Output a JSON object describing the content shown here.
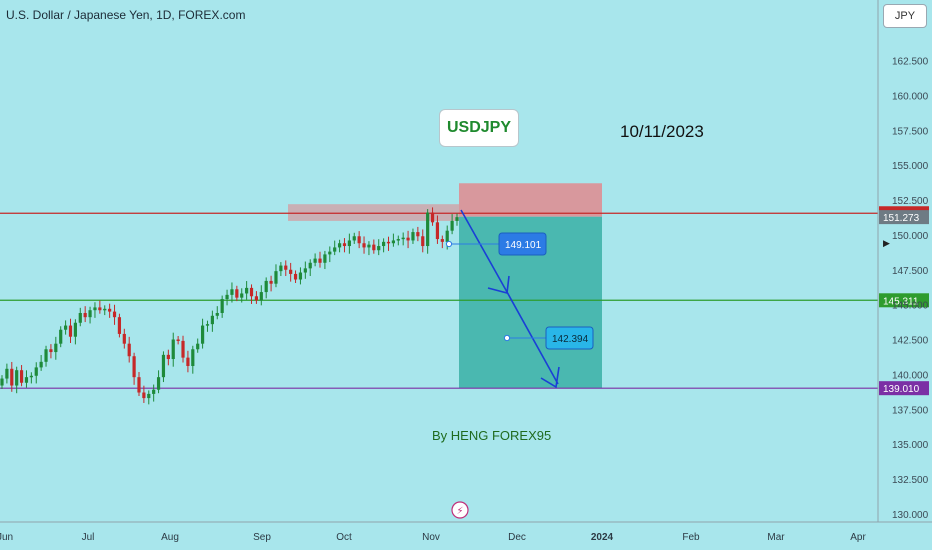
{
  "header": {
    "title": "U.S. Dollar / Japanese Yen, 1D, FOREX.com"
  },
  "currency_button": "JPY",
  "symbol_label": "USDJPY",
  "date_label": "10/11/2023",
  "author_label": "By HENG FOREX95",
  "colors": {
    "background": "#a8e6ec",
    "up": "#1e8a3a",
    "down": "#c62828",
    "target": "#3fb3aa",
    "stop": "#e08a8f",
    "arrow": "#1a3fd6"
  },
  "chart_data": {
    "type": "candlestick",
    "y_axis": {
      "ylim": [
        130,
        164
      ],
      "ticks": [
        "130.000",
        "132.500",
        "135.000",
        "137.500",
        "140.000",
        "142.500",
        "145.000",
        "147.500",
        "150.000",
        "152.500",
        "155.000",
        "157.500",
        "160.000",
        "162.500"
      ]
    },
    "x_axis": {
      "ticks": [
        "Jun",
        "Jul",
        "Aug",
        "Sep",
        "Oct",
        "Nov",
        "Dec",
        "2024",
        "Feb",
        "Mar",
        "Apr"
      ]
    },
    "price_lines": [
      {
        "name": "resistance",
        "value": 151.55,
        "label": "151.550",
        "color": "#c62828"
      },
      {
        "name": "last-price",
        "value": 151.273,
        "label": "151.273",
        "color": "#6e7b84"
      },
      {
        "name": "mid-support",
        "value": 145.311,
        "label": "145.311",
        "color": "#2e9c2e"
      },
      {
        "name": "support",
        "value": 139.01,
        "label": "139.010",
        "color": "#7b2fa5"
      }
    ],
    "annotations": [
      {
        "name": "target-1",
        "label": "149.101",
        "value": 149.101
      },
      {
        "name": "target-2",
        "label": "142.394",
        "value": 142.394
      }
    ],
    "short_position": {
      "entry": 151.3,
      "stop": 153.7,
      "target": 139.0,
      "start": "2023-11-10",
      "end": "2024-01-05"
    },
    "resistance_zone": {
      "from": 151.0,
      "to": 152.2,
      "start": "2023-09-13",
      "end": "2023-11-10"
    },
    "series": [
      {
        "values": [
          139.7,
          140.4,
          139.2,
          140.3,
          139.4,
          139.8,
          139.9,
          140.5,
          140.9,
          141.8,
          141.6,
          142.2,
          143.2,
          143.5,
          142.7,
          143.7,
          144.4,
          144.1,
          144.6,
          144.8,
          144.6,
          144.7,
          144.5,
          144.1,
          142.9,
          142.2,
          141.3,
          139.8,
          138.7,
          138.3,
          138.6,
          138.9,
          139.8,
          141.4,
          141.1,
          142.5,
          142.4,
          141.2,
          140.6,
          141.8,
          142.2,
          143.5,
          143.6,
          144.2,
          144.4,
          145.4,
          145.7,
          146.1,
          145.5,
          145.8,
          146.2,
          145.6,
          145.3,
          145.9,
          146.7,
          146.5,
          147.4,
          147.8,
          147.5,
          147.2,
          146.8,
          147.3,
          147.6,
          148.0,
          148.3,
          148.0,
          148.6,
          148.8,
          149.1,
          149.4,
          149.2,
          149.6,
          149.9,
          149.4,
          149.1,
          149.3,
          148.9,
          149.2,
          149.5,
          149.4,
          149.6,
          149.7,
          149.8,
          149.6,
          150.2,
          149.9,
          149.2,
          151.6,
          150.9,
          149.7,
          149.5,
          150.3,
          151.0,
          151.27
        ]
      }
    ]
  }
}
